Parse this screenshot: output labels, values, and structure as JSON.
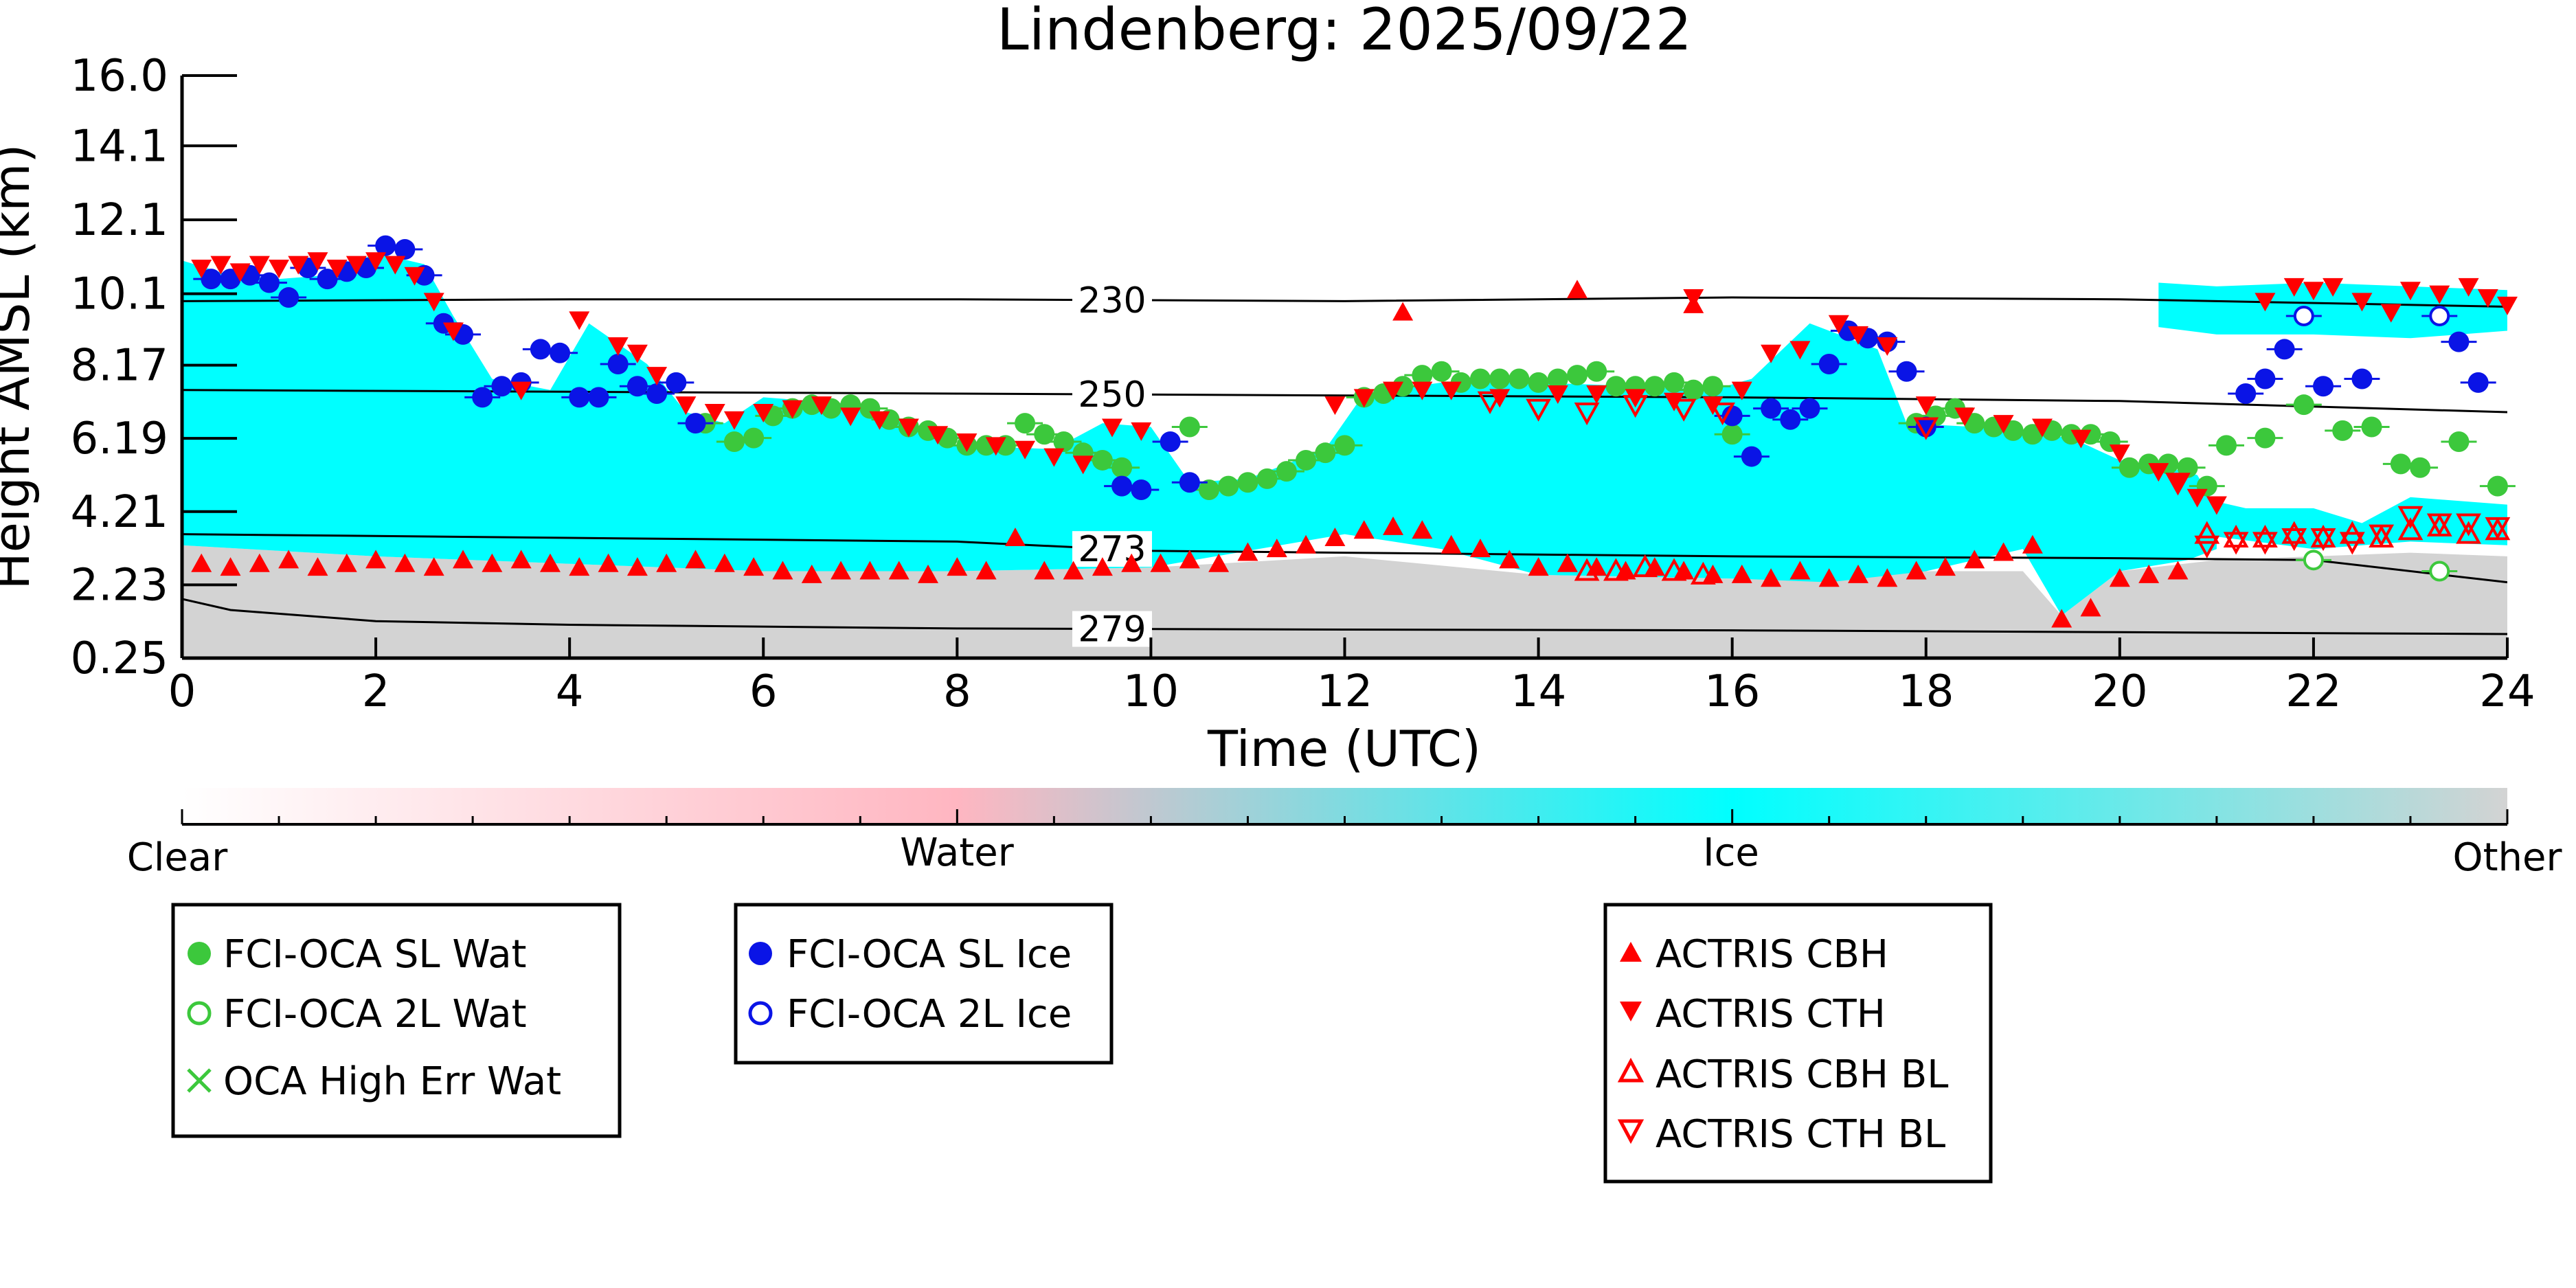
{
  "chart_data": {
    "type": "scatter",
    "title": "Lindenberg: 2025/09/22",
    "xlabel": "Time (UTC)",
    "ylabel": "Height AMSL (km)",
    "xlim": [
      0,
      24
    ],
    "ylim": [
      0.25,
      16.0
    ],
    "x_ticks": [
      0,
      2,
      4,
      6,
      8,
      10,
      12,
      14,
      16,
      18,
      20,
      22,
      24
    ],
    "y_ticks": [
      "0.25",
      "2.23",
      "4.21",
      "6.19",
      "8.17",
      "10.1",
      "12.1",
      "14.1",
      "16.0"
    ],
    "colors": {
      "ice": "#00ffff",
      "other": "#d3d3d3",
      "water": "#ffb6c1",
      "sl_wat": "#3cc83c",
      "sl_ice": "#0a14e6",
      "actris": "#ff0000"
    },
    "classification_colorbar": {
      "labels": [
        "Clear",
        "Water",
        "Ice",
        "Other"
      ],
      "colors": [
        "#ffffff",
        "#ffb6c1",
        "#00ffff",
        "#d3d3d3"
      ]
    },
    "isotherms": [
      {
        "label": "230",
        "points": [
          [
            0,
            9.9
          ],
          [
            4,
            9.95
          ],
          [
            8,
            9.95
          ],
          [
            12,
            9.9
          ],
          [
            16,
            10.0
          ],
          [
            20,
            9.95
          ],
          [
            24,
            9.75
          ]
        ]
      },
      {
        "label": "250",
        "points": [
          [
            0,
            7.5
          ],
          [
            4,
            7.45
          ],
          [
            8,
            7.4
          ],
          [
            12,
            7.35
          ],
          [
            16,
            7.3
          ],
          [
            20,
            7.2
          ],
          [
            24,
            6.9
          ]
        ]
      },
      {
        "label": "273",
        "points": [
          [
            0,
            3.6
          ],
          [
            4,
            3.5
          ],
          [
            8,
            3.4
          ],
          [
            10,
            3.15
          ],
          [
            12,
            3.1
          ],
          [
            16,
            3.0
          ],
          [
            20,
            2.95
          ],
          [
            22,
            2.9
          ],
          [
            24,
            2.3
          ]
        ]
      },
      {
        "label": "279",
        "points": [
          [
            0,
            1.85
          ],
          [
            0.5,
            1.55
          ],
          [
            2,
            1.25
          ],
          [
            4,
            1.15
          ],
          [
            8,
            1.05
          ],
          [
            12,
            1.02
          ],
          [
            16,
            1.0
          ],
          [
            20,
            0.95
          ],
          [
            24,
            0.9
          ]
        ]
      }
    ],
    "background": {
      "ice_top": [
        [
          0,
          11.0
        ],
        [
          0.5,
          10.6
        ],
        [
          1,
          10.5
        ],
        [
          1.5,
          10.6
        ],
        [
          2,
          11.2
        ],
        [
          2.5,
          10.9
        ],
        [
          2.8,
          9.5
        ],
        [
          3.2,
          7.8
        ],
        [
          3.8,
          7.5
        ],
        [
          4.2,
          9.3
        ],
        [
          4.8,
          8.2
        ],
        [
          5.2,
          6.9
        ],
        [
          5.6,
          6.6
        ],
        [
          6,
          7.3
        ],
        [
          7,
          7.1
        ],
        [
          8,
          6.0
        ],
        [
          9,
          5.9
        ],
        [
          9.5,
          6.6
        ],
        [
          10,
          6.5
        ],
        [
          10.4,
          5.0
        ],
        [
          11,
          5.1
        ],
        [
          11.8,
          5.9
        ],
        [
          12.2,
          7.4
        ],
        [
          13,
          7.7
        ],
        [
          14,
          7.7
        ],
        [
          15,
          7.6
        ],
        [
          15.8,
          7.5
        ],
        [
          16.2,
          7.8
        ],
        [
          16.8,
          9.3
        ],
        [
          17.5,
          8.6
        ],
        [
          17.8,
          6.6
        ],
        [
          18.5,
          6.5
        ],
        [
          19.5,
          6.2
        ],
        [
          20,
          5.6
        ],
        [
          20.5,
          5.4
        ],
        [
          20.8,
          5.2
        ],
        [
          21.0,
          4.3
        ]
      ],
      "ice_bottom": [
        [
          0,
          3.3
        ],
        [
          2,
          3.0
        ],
        [
          4,
          2.8
        ],
        [
          6,
          2.6
        ],
        [
          8,
          2.6
        ],
        [
          10,
          2.7
        ],
        [
          12,
          3.6
        ],
        [
          13,
          3.2
        ],
        [
          14,
          2.5
        ],
        [
          16,
          2.4
        ],
        [
          17,
          2.3
        ],
        [
          18,
          2.6
        ],
        [
          19,
          3.2
        ],
        [
          19.4,
          1.4
        ],
        [
          20,
          2.6
        ],
        [
          20.7,
          2.9
        ],
        [
          21.0,
          3.2
        ]
      ],
      "ice_top_late": [
        [
          20.8,
          4.6
        ],
        [
          21.3,
          4.3
        ],
        [
          22,
          4.3
        ],
        [
          22.5,
          3.9
        ],
        [
          23,
          4.6
        ],
        [
          24,
          4.4
        ]
      ],
      "ice_bottom_late": [
        [
          20.8,
          3.6
        ],
        [
          22,
          3.2
        ],
        [
          23,
          3.4
        ],
        [
          24,
          3.3
        ]
      ],
      "high_ice_top": [
        [
          20.4,
          10.4
        ],
        [
          21,
          10.3
        ],
        [
          22,
          10.4
        ],
        [
          23,
          10.3
        ],
        [
          24,
          10.2
        ]
      ],
      "high_ice_bottom": [
        [
          20.4,
          9.2
        ],
        [
          21,
          9.0
        ],
        [
          22,
          9.0
        ],
        [
          23,
          8.9
        ],
        [
          24,
          9.1
        ]
      ],
      "other_top": [
        [
          0,
          3.3
        ],
        [
          2,
          3.0
        ],
        [
          4,
          2.8
        ],
        [
          6,
          2.6
        ],
        [
          8,
          2.6
        ],
        [
          10,
          2.7
        ],
        [
          12,
          3.0
        ],
        [
          14,
          2.5
        ],
        [
          16,
          2.4
        ],
        [
          18,
          2.6
        ],
        [
          19,
          2.6
        ],
        [
          19.4,
          1.4
        ],
        [
          20,
          2.6
        ],
        [
          21,
          2.9
        ],
        [
          22,
          3.0
        ],
        [
          23,
          3.1
        ],
        [
          24,
          3.0
        ]
      ]
    },
    "series": [
      {
        "name": "FCI-OCA SL Wat",
        "marker": "circle-filled",
        "color": "#3cc83c",
        "x": [
          5.4,
          5.7,
          5.9,
          6.1,
          6.3,
          6.5,
          6.7,
          6.9,
          7.1,
          7.3,
          7.5,
          7.7,
          7.9,
          8.1,
          8.3,
          8.5,
          8.7,
          8.9,
          9.1,
          9.3,
          9.5,
          9.7,
          10.4,
          10.6,
          10.8,
          11.0,
          11.2,
          11.4,
          11.6,
          11.8,
          12.0,
          12.2,
          12.4,
          12.6,
          12.8,
          13.0,
          13.2,
          13.4,
          13.6,
          13.8,
          14.0,
          14.2,
          14.4,
          14.6,
          14.8,
          15.0,
          15.2,
          15.4,
          15.6,
          15.8,
          16.0,
          17.9,
          18.1,
          18.3,
          18.5,
          18.7,
          18.9,
          19.1,
          19.3,
          19.5,
          19.7,
          19.9,
          20.1,
          20.3,
          20.5,
          20.7,
          20.9,
          21.1,
          21.5,
          21.9,
          22.3,
          22.6,
          22.9,
          23.1,
          23.5,
          23.9
        ],
        "y": [
          6.6,
          6.1,
          6.2,
          6.8,
          7.0,
          7.1,
          7.0,
          7.1,
          7.0,
          6.7,
          6.5,
          6.4,
          6.2,
          6.0,
          6.0,
          6.0,
          6.6,
          6.3,
          6.1,
          5.8,
          5.6,
          5.4,
          6.5,
          4.8,
          4.9,
          5.0,
          5.1,
          5.3,
          5.6,
          5.8,
          6.0,
          7.3,
          7.4,
          7.6,
          7.9,
          8.0,
          7.7,
          7.8,
          7.8,
          7.8,
          7.7,
          7.8,
          7.9,
          8.0,
          7.6,
          7.6,
          7.6,
          7.7,
          7.5,
          7.6,
          6.3,
          6.6,
          6.8,
          7.0,
          6.6,
          6.5,
          6.4,
          6.3,
          6.4,
          6.3,
          6.3,
          6.1,
          5.4,
          5.5,
          5.5,
          5.4,
          4.9,
          6.0,
          6.2,
          7.1,
          6.4,
          6.5,
          5.5,
          5.4,
          6.1,
          4.9
        ]
      },
      {
        "name": "FCI-OCA 2L Wat",
        "marker": "circle-open",
        "color": "#3cc83c",
        "x": [
          22.0,
          23.3
        ],
        "y": [
          2.9,
          2.6
        ]
      },
      {
        "name": "OCA High Err Wat",
        "marker": "x",
        "color": "#3cc83c",
        "x": [],
        "y": []
      },
      {
        "name": "FCI-OCA SL Ice",
        "marker": "circle-filled",
        "color": "#0a14e6",
        "x": [
          0.3,
          0.5,
          0.7,
          0.9,
          1.1,
          1.3,
          1.5,
          1.7,
          1.9,
          2.1,
          2.3,
          2.5,
          2.7,
          2.9,
          3.1,
          3.3,
          3.5,
          3.7,
          3.9,
          4.1,
          4.3,
          4.5,
          4.7,
          4.9,
          5.1,
          5.3,
          9.7,
          9.9,
          10.2,
          10.4,
          16.0,
          16.2,
          16.4,
          16.6,
          16.8,
          17.0,
          17.2,
          17.4,
          17.6,
          17.8,
          18.0,
          21.3,
          21.5,
          21.7,
          22.1,
          22.5,
          23.5,
          23.7
        ],
        "y": [
          10.5,
          10.5,
          10.6,
          10.4,
          10.0,
          10.8,
          10.5,
          10.7,
          10.8,
          11.4,
          11.3,
          10.6,
          9.3,
          9.0,
          7.3,
          7.6,
          7.7,
          8.6,
          8.5,
          7.3,
          7.3,
          8.2,
          7.6,
          7.4,
          7.7,
          6.6,
          4.9,
          4.8,
          6.1,
          5.0,
          6.8,
          5.7,
          7.0,
          6.7,
          7.0,
          8.2,
          9.1,
          8.9,
          8.8,
          8.0,
          6.5,
          7.4,
          7.8,
          8.6,
          7.6,
          7.8,
          8.8,
          7.7
        ]
      },
      {
        "name": "FCI-OCA 2L Ice",
        "marker": "circle-open",
        "color": "#0a14e6",
        "x": [
          21.9,
          23.3
        ],
        "y": [
          9.5,
          9.5
        ]
      },
      {
        "name": "ACTRIS CBH",
        "marker": "triangle-up-filled",
        "color": "#ff0000",
        "x": [
          0.2,
          0.5,
          0.8,
          1.1,
          1.4,
          1.7,
          2.0,
          2.3,
          2.6,
          2.9,
          3.2,
          3.5,
          3.8,
          4.1,
          4.4,
          4.7,
          5.0,
          5.3,
          5.6,
          5.9,
          6.2,
          6.5,
          6.8,
          7.1,
          7.4,
          7.7,
          8.0,
          8.3,
          8.6,
          8.9,
          9.2,
          9.5,
          9.8,
          10.1,
          10.4,
          10.7,
          11.0,
          11.3,
          11.6,
          11.9,
          12.2,
          12.5,
          12.8,
          13.1,
          13.4,
          13.7,
          14.0,
          14.3,
          14.6,
          14.9,
          15.2,
          15.5,
          15.8,
          16.1,
          16.4,
          16.7,
          17.0,
          17.3,
          17.6,
          17.9,
          18.2,
          18.5,
          18.8,
          19.1,
          19.4,
          19.7,
          20.0,
          20.3,
          20.6,
          12.6,
          14.4,
          15.6
        ],
        "y": [
          2.8,
          2.7,
          2.8,
          2.9,
          2.7,
          2.8,
          2.9,
          2.8,
          2.7,
          2.9,
          2.8,
          2.9,
          2.8,
          2.7,
          2.8,
          2.7,
          2.8,
          2.9,
          2.8,
          2.7,
          2.6,
          2.5,
          2.6,
          2.6,
          2.6,
          2.5,
          2.7,
          2.6,
          3.5,
          2.6,
          2.6,
          2.7,
          2.8,
          2.8,
          2.9,
          2.8,
          3.1,
          3.2,
          3.3,
          3.5,
          3.7,
          3.8,
          3.7,
          3.3,
          3.2,
          2.9,
          2.7,
          2.8,
          2.7,
          2.6,
          2.7,
          2.6,
          2.5,
          2.5,
          2.4,
          2.6,
          2.4,
          2.5,
          2.4,
          2.6,
          2.7,
          2.9,
          3.1,
          3.3,
          1.3,
          1.6,
          2.4,
          2.5,
          2.6,
          9.6,
          10.2,
          9.8
        ]
      },
      {
        "name": "ACTRIS CTH",
        "marker": "triangle-down-filled",
        "color": "#ff0000",
        "x": [
          0.2,
          0.4,
          0.6,
          0.8,
          1.0,
          1.2,
          1.4,
          1.6,
          1.8,
          2.0,
          2.2,
          2.4,
          2.6,
          2.8,
          3.5,
          4.1,
          4.5,
          4.7,
          4.9,
          5.2,
          5.5,
          5.7,
          6.0,
          6.3,
          6.6,
          6.9,
          7.2,
          7.5,
          7.8,
          8.1,
          8.4,
          8.7,
          9.0,
          9.3,
          9.6,
          9.9,
          11.9,
          12.2,
          12.5,
          12.8,
          13.1,
          13.6,
          14.2,
          14.6,
          15.0,
          15.4,
          15.6,
          15.8,
          16.1,
          16.4,
          16.7,
          17.1,
          17.3,
          17.6,
          18.0,
          18.4,
          18.8,
          19.2,
          19.6,
          20.0,
          20.4,
          20.6,
          20.8,
          21.0,
          21.5,
          21.8,
          22.0,
          22.2,
          22.5,
          22.8,
          23.0,
          23.3,
          23.6,
          23.8,
          24.0
        ],
        "y": [
          10.8,
          10.9,
          10.7,
          10.9,
          10.8,
          10.9,
          11.0,
          10.8,
          10.9,
          11.0,
          10.9,
          10.6,
          9.9,
          9.1,
          7.5,
          9.4,
          8.7,
          8.5,
          7.9,
          7.1,
          6.9,
          6.7,
          6.9,
          7.0,
          7.1,
          6.8,
          6.7,
          6.5,
          6.3,
          6.1,
          6.0,
          5.9,
          5.7,
          5.5,
          6.5,
          6.4,
          7.1,
          7.3,
          7.5,
          7.5,
          7.5,
          7.3,
          7.4,
          7.4,
          7.3,
          7.2,
          10.0,
          7.1,
          7.5,
          8.5,
          8.6,
          9.3,
          9.0,
          8.7,
          7.1,
          6.8,
          6.6,
          6.5,
          6.2,
          5.8,
          5.3,
          5.0,
          4.6,
          4.4,
          9.9,
          10.3,
          10.2,
          10.3,
          9.9,
          9.6,
          10.2,
          10.1,
          10.3,
          10.0,
          9.8
        ]
      },
      {
        "name": "ACTRIS CBH BL",
        "marker": "triangle-up-open",
        "color": "#ff0000",
        "x": [
          14.5,
          14.8,
          15.1,
          15.4,
          15.7,
          20.9,
          21.2,
          21.5,
          21.8,
          22.1,
          22.4,
          22.7,
          23.0,
          23.3,
          23.6,
          23.9
        ],
        "y": [
          2.6,
          2.6,
          2.7,
          2.6,
          2.5,
          3.6,
          3.5,
          3.5,
          3.6,
          3.5,
          3.6,
          3.5,
          3.7,
          3.8,
          3.6,
          3.7
        ]
      },
      {
        "name": "ACTRIS CTH BL",
        "marker": "triangle-down-open",
        "color": "#ff0000",
        "x": [
          13.5,
          14.0,
          14.5,
          15.0,
          15.5,
          15.9,
          18.0,
          20.6,
          20.9,
          21.2,
          21.5,
          21.8,
          22.1,
          22.4,
          22.7,
          23.0,
          23.3,
          23.6,
          23.9
        ],
        "y": [
          7.2,
          7.0,
          6.9,
          7.1,
          7.0,
          6.9,
          6.5,
          5.0,
          3.3,
          3.4,
          3.4,
          3.5,
          3.5,
          3.4,
          3.6,
          4.1,
          3.9,
          3.9,
          3.8
        ]
      }
    ],
    "legend_groups": [
      [
        "FCI-OCA SL Wat",
        "FCI-OCA 2L Wat",
        "OCA High Err Wat"
      ],
      [
        "FCI-OCA SL Ice",
        "FCI-OCA 2L Ice"
      ],
      [
        "ACTRIS CBH",
        "ACTRIS CTH",
        "ACTRIS CBH BL",
        "ACTRIS CTH BL"
      ]
    ],
    "legend_placement": "below-plot",
    "grid": false
  }
}
